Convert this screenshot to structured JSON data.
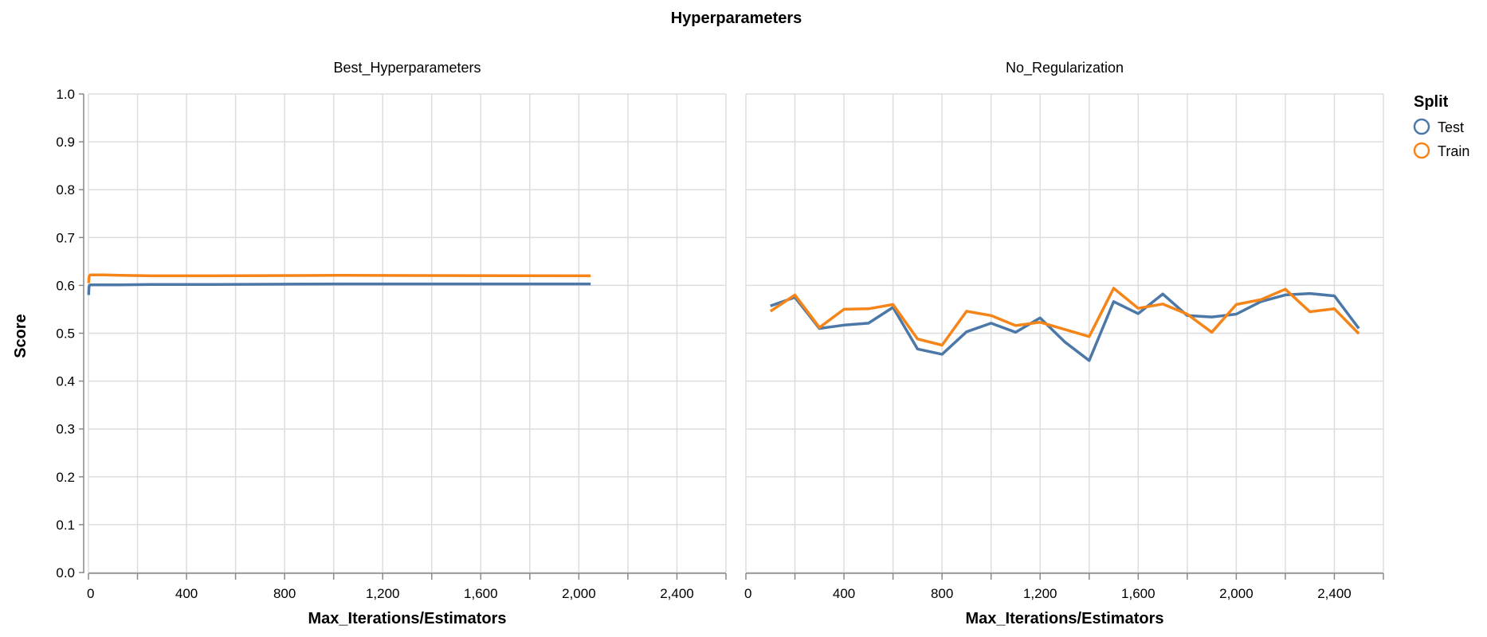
{
  "chart_data": {
    "type": "line",
    "title": "Hyperparameters",
    "ylabel": "Score",
    "xlabel": "Max_Iterations/Estimators",
    "ylim": [
      0,
      1
    ],
    "xlim": [
      0,
      2600
    ],
    "y_ticks": [
      0.0,
      0.1,
      0.2,
      0.3,
      0.4,
      0.5,
      0.6,
      0.7,
      0.8,
      0.9,
      1.0
    ],
    "y_tick_labels": [
      "0.0",
      "0.1",
      "0.2",
      "0.3",
      "0.4",
      "0.5",
      "0.6",
      "0.7",
      "0.8",
      "0.9",
      "1.0"
    ],
    "x_ticks": [
      0,
      200,
      400,
      600,
      800,
      1000,
      1200,
      1400,
      1600,
      1800,
      2000,
      2200,
      2400,
      2600
    ],
    "x_tick_labels": [
      {
        "value": 0,
        "label": "0"
      },
      {
        "value": 400,
        "label": "400"
      },
      {
        "value": 800,
        "label": "800"
      },
      {
        "value": 1200,
        "label": "1,200"
      },
      {
        "value": 1600,
        "label": "1,600"
      },
      {
        "value": 2000,
        "label": "2,000"
      },
      {
        "value": 2400,
        "label": "2,400"
      }
    ],
    "legend": {
      "title": "Split",
      "position": "top-right",
      "entries": [
        {
          "name": "Test",
          "color": "#4c78a8"
        },
        {
          "name": "Train",
          "color": "#f58518"
        }
      ]
    },
    "facets": [
      {
        "name": "Best_Hyperparameters",
        "series": [
          {
            "name": "Test",
            "color": "#4c78a8",
            "x": [
              1,
              2,
              4,
              8,
              16,
              32,
              64,
              128,
              256,
              512,
              1024,
              2048
            ],
            "y": [
              0.58,
              0.595,
              0.6,
              0.601,
              0.601,
              0.601,
              0.601,
              0.601,
              0.602,
              0.602,
              0.603,
              0.603
            ]
          },
          {
            "name": "Train",
            "color": "#f58518",
            "x": [
              1,
              2,
              4,
              8,
              16,
              32,
              64,
              128,
              256,
              512,
              1024,
              2048
            ],
            "y": [
              0.605,
              0.615,
              0.62,
              0.622,
              0.622,
              0.622,
              0.622,
              0.621,
              0.62,
              0.62,
              0.621,
              0.62
            ]
          }
        ]
      },
      {
        "name": "No_Regularization",
        "series": [
          {
            "name": "Test",
            "color": "#4c78a8",
            "x": [
              100,
              200,
              300,
              400,
              500,
              600,
              700,
              800,
              900,
              1000,
              1100,
              1200,
              1300,
              1400,
              1500,
              1600,
              1700,
              1800,
              1900,
              2000,
              2100,
              2200,
              2300,
              2400,
              2500
            ],
            "y": [
              0.557,
              0.575,
              0.51,
              0.517,
              0.521,
              0.554,
              0.467,
              0.456,
              0.503,
              0.521,
              0.502,
              0.532,
              0.482,
              0.443,
              0.566,
              0.541,
              0.582,
              0.537,
              0.534,
              0.54,
              0.566,
              0.58,
              0.583,
              0.578,
              0.51
            ]
          },
          {
            "name": "Train",
            "color": "#f58518",
            "x": [
              100,
              200,
              300,
              400,
              500,
              600,
              700,
              800,
              900,
              1000,
              1100,
              1200,
              1300,
              1400,
              1500,
              1600,
              1700,
              1800,
              1900,
              2000,
              2100,
              2200,
              2300,
              2400,
              2500
            ],
            "y": [
              0.546,
              0.58,
              0.512,
              0.55,
              0.551,
              0.56,
              0.488,
              0.475,
              0.546,
              0.537,
              0.516,
              0.523,
              0.508,
              0.493,
              0.594,
              0.552,
              0.561,
              0.54,
              0.502,
              0.56,
              0.57,
              0.592,
              0.545,
              0.551,
              0.499
            ]
          }
        ]
      }
    ]
  }
}
